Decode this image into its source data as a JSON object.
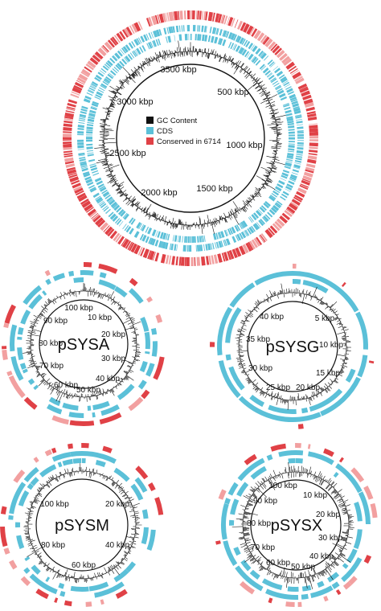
{
  "colors": {
    "gc": "#111111",
    "cds": "#5bc0d8",
    "conserved": "#e04146",
    "conserved_light": "#f2a0a0",
    "ring": "#111111"
  },
  "legend": {
    "gc": "GC Content",
    "cds": "CDS",
    "conserved": "Conserved in 6714"
  },
  "chromosome": {
    "total_kbp": 3900,
    "ticks": [
      {
        "kbp": 500,
        "label": "500 kbp"
      },
      {
        "kbp": 1000,
        "label": "1000 kbp"
      },
      {
        "kbp": 1500,
        "label": "1500 kbp"
      },
      {
        "kbp": 2000,
        "label": "2000 kbp"
      },
      {
        "kbp": 2500,
        "label": "2500 kbp"
      },
      {
        "kbp": 3000,
        "label": "3000 kbp"
      },
      {
        "kbp": 3500,
        "label": "3500 kbp"
      }
    ]
  },
  "plasmids": [
    {
      "id": "psysa",
      "name": "pSYSA",
      "total_kbp": 103,
      "ticks": [
        {
          "kbp": 10,
          "label": "10 kbp"
        },
        {
          "kbp": 20,
          "label": "20 kbp"
        },
        {
          "kbp": 30,
          "label": "30 kbp"
        },
        {
          "kbp": 40,
          "label": "40 kbp"
        },
        {
          "kbp": 50,
          "label": "50 kbp"
        },
        {
          "kbp": 60,
          "label": "60 kbp"
        },
        {
          "kbp": 70,
          "label": "70 kbp"
        },
        {
          "kbp": 80,
          "label": "80 kbp"
        },
        {
          "kbp": 90,
          "label": "90 kbp"
        },
        {
          "kbp": 100,
          "label": "100 kbp"
        }
      ]
    },
    {
      "id": "psysg",
      "name": "pSYSG",
      "total_kbp": 44,
      "ticks": [
        {
          "kbp": 5,
          "label": "5 kbp"
        },
        {
          "kbp": 10,
          "label": "10 kbp"
        },
        {
          "kbp": 15,
          "label": "15 kbp"
        },
        {
          "kbp": 20,
          "label": "20 kbp"
        },
        {
          "kbp": 25,
          "label": "25 kbp"
        },
        {
          "kbp": 30,
          "label": "30 kbp"
        },
        {
          "kbp": 35,
          "label": "35 kbp"
        },
        {
          "kbp": 40,
          "label": "40 kbp"
        }
      ]
    },
    {
      "id": "psysm",
      "name": "pSYSM",
      "total_kbp": 120,
      "ticks": [
        {
          "kbp": 20,
          "label": "20 kbp"
        },
        {
          "kbp": 40,
          "label": "40 kbp"
        },
        {
          "kbp": 60,
          "label": "60 kbp"
        },
        {
          "kbp": 80,
          "label": "80 kbp"
        },
        {
          "kbp": 100,
          "label": "100 kbp"
        }
      ]
    },
    {
      "id": "psysx",
      "name": "pSYSX",
      "total_kbp": 106,
      "ticks": [
        {
          "kbp": 10,
          "label": "10 kbp"
        },
        {
          "kbp": 20,
          "label": "20 kbp"
        },
        {
          "kbp": 30,
          "label": "30 kbp"
        },
        {
          "kbp": 40,
          "label": "40 kbp"
        },
        {
          "kbp": 50,
          "label": "50 kbp"
        },
        {
          "kbp": 60,
          "label": "60 kbp"
        },
        {
          "kbp": 70,
          "label": "70 kbp"
        },
        {
          "kbp": 80,
          "label": "80 kbp"
        },
        {
          "kbp": 90,
          "label": "90 kbp"
        },
        {
          "kbp": 100,
          "label": "100 kbp"
        }
      ]
    }
  ]
}
